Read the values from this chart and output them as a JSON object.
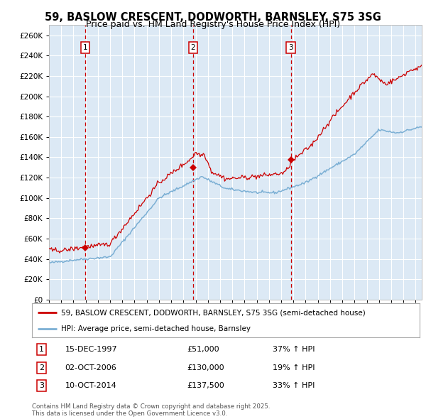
{
  "title": "59, BASLOW CRESCENT, DODWORTH, BARNSLEY, S75 3SG",
  "subtitle": "Price paid vs. HM Land Registry's House Price Index (HPI)",
  "title_fontsize": 10.5,
  "subtitle_fontsize": 9.0,
  "background_color": "#dce9f5",
  "fig_bg_color": "#ffffff",
  "red_line_color": "#cc0000",
  "blue_line_color": "#7bafd4",
  "dashed_vline_color": "#cc0000",
  "grid_color": "#ffffff",
  "ylim": [
    0,
    270000
  ],
  "yticks": [
    0,
    20000,
    40000,
    60000,
    80000,
    100000,
    120000,
    140000,
    160000,
    180000,
    200000,
    220000,
    240000,
    260000
  ],
  "sale_labels": [
    "1",
    "2",
    "3"
  ],
  "legend_entries": [
    "59, BASLOW CRESCENT, DODWORTH, BARNSLEY, S75 3SG (semi-detached house)",
    "HPI: Average price, semi-detached house, Barnsley"
  ],
  "table_rows": [
    {
      "label": "1",
      "date": "15-DEC-1997",
      "price": "£51,000",
      "hpi": "37% ↑ HPI"
    },
    {
      "label": "2",
      "date": "02-OCT-2006",
      "price": "£130,000",
      "hpi": "19% ↑ HPI"
    },
    {
      "label": "3",
      "date": "10-OCT-2014",
      "price": "£137,500",
      "hpi": "33% ↑ HPI"
    }
  ],
  "footer": "Contains HM Land Registry data © Crown copyright and database right 2025.\nThis data is licensed under the Open Government Licence v3.0."
}
